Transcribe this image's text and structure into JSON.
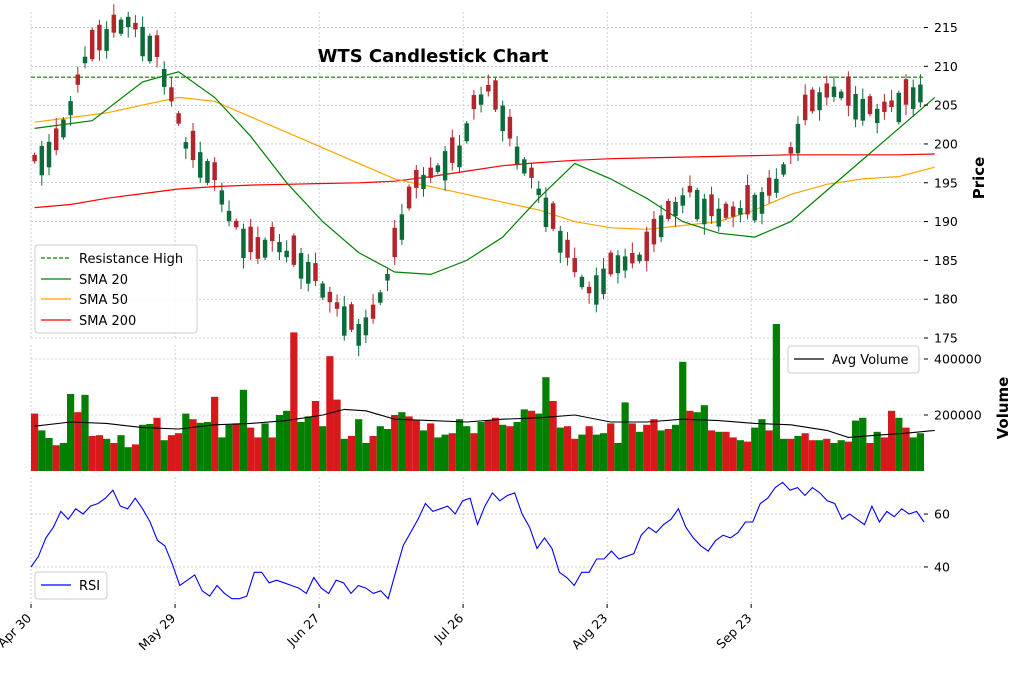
{
  "chart_data": {
    "type": "candlestick",
    "title": "WTS Candlestick Chart",
    "x_tick_labels": [
      "Apr 30",
      "May 29",
      "Jun 27",
      "Jul 26",
      "Aug 23",
      "Sep 23"
    ],
    "price_panel": {
      "ylabel": "Price",
      "ylim": [
        175,
        217
      ],
      "y_ticks": [
        175,
        180,
        185,
        190,
        195,
        200,
        205,
        210,
        215
      ],
      "resistance_high": 208.6,
      "legend": [
        "Resistance High",
        "SMA 20",
        "SMA 50",
        "SMA 200"
      ],
      "legend_position": "lower-left",
      "colors": {
        "up": "#0b6b3a",
        "down": "#b0262b",
        "resistance": "#008000",
        "sma20": "#008000",
        "sma50": "#ffa500",
        "sma200": "#ff0000"
      },
      "close_path": [
        [
          0,
          198
        ],
        [
          3,
          200
        ],
        [
          5,
          205
        ],
        [
          7,
          211
        ],
        [
          9,
          213
        ],
        [
          11,
          215
        ],
        [
          13,
          216
        ],
        [
          15,
          214
        ],
        [
          17,
          212
        ],
        [
          19,
          206
        ],
        [
          21,
          200
        ],
        [
          23,
          198
        ],
        [
          25,
          196
        ],
        [
          27,
          191
        ],
        [
          29,
          188
        ],
        [
          31,
          186
        ],
        [
          33,
          188
        ],
        [
          35,
          186
        ],
        [
          37,
          185
        ],
        [
          39,
          183
        ],
        [
          41,
          180
        ],
        [
          43,
          178
        ],
        [
          45,
          176
        ],
        [
          47,
          178
        ],
        [
          49,
          183
        ],
        [
          51,
          190
        ],
        [
          53,
          195
        ],
        [
          55,
          196
        ],
        [
          57,
          198
        ],
        [
          59,
          199
        ],
        [
          61,
          205
        ],
        [
          63,
          207
        ],
        [
          65,
          204
        ],
        [
          67,
          199
        ],
        [
          69,
          196
        ],
        [
          71,
          192
        ],
        [
          73,
          188
        ],
        [
          75,
          184
        ],
        [
          77,
          181
        ],
        [
          79,
          183
        ],
        [
          81,
          185
        ],
        [
          83,
          185
        ],
        [
          85,
          186
        ],
        [
          87,
          190
        ],
        [
          89,
          192
        ],
        [
          91,
          194
        ],
        [
          93,
          192
        ],
        [
          95,
          191
        ],
        [
          97,
          191
        ],
        [
          99,
          192
        ],
        [
          101,
          193
        ],
        [
          103,
          195
        ],
        [
          105,
          199
        ],
        [
          107,
          204
        ],
        [
          109,
          206
        ],
        [
          111,
          207
        ],
        [
          113,
          206
        ],
        [
          115,
          205
        ],
        [
          117,
          204
        ],
        [
          119,
          205
        ],
        [
          121,
          206
        ],
        [
          123,
          207
        ],
        [
          125,
          206
        ]
      ],
      "sma20": [
        [
          0,
          202
        ],
        [
          8,
          203
        ],
        [
          15,
          208
        ],
        [
          20,
          209.3
        ],
        [
          25,
          206
        ],
        [
          30,
          201
        ],
        [
          35,
          195
        ],
        [
          40,
          190
        ],
        [
          45,
          186
        ],
        [
          50,
          183.5
        ],
        [
          55,
          183.2
        ],
        [
          60,
          185
        ],
        [
          65,
          188
        ],
        [
          70,
          193
        ],
        [
          75,
          197.5
        ],
        [
          80,
          195.5
        ],
        [
          85,
          193
        ],
        [
          90,
          190
        ],
        [
          95,
          188.5
        ],
        [
          100,
          188
        ],
        [
          105,
          190
        ],
        [
          110,
          194
        ],
        [
          115,
          198
        ],
        [
          120,
          202
        ],
        [
          125,
          206
        ]
      ],
      "sma50": [
        [
          0,
          202.8
        ],
        [
          10,
          204
        ],
        [
          15,
          205
        ],
        [
          20,
          206
        ],
        [
          25,
          205.5
        ],
        [
          30,
          203.5
        ],
        [
          35,
          201.5
        ],
        [
          40,
          199.5
        ],
        [
          45,
          197.5
        ],
        [
          50,
          195.5
        ],
        [
          55,
          194.5
        ],
        [
          60,
          193.5
        ],
        [
          65,
          192.5
        ],
        [
          70,
          191.5
        ],
        [
          75,
          190
        ],
        [
          80,
          189.2
        ],
        [
          85,
          189
        ],
        [
          90,
          189.5
        ],
        [
          95,
          190
        ],
        [
          100,
          191.5
        ],
        [
          105,
          193.5
        ],
        [
          110,
          194.8
        ],
        [
          115,
          195.5
        ],
        [
          120,
          195.8
        ],
        [
          125,
          197
        ]
      ],
      "sma200": [
        [
          0,
          191.8
        ],
        [
          5,
          192.2
        ],
        [
          10,
          193
        ],
        [
          15,
          193.6
        ],
        [
          20,
          194.2
        ],
        [
          25,
          194.5
        ],
        [
          30,
          194.7
        ],
        [
          35,
          194.8
        ],
        [
          40,
          194.9
        ],
        [
          45,
          195
        ],
        [
          50,
          195.2
        ],
        [
          55,
          195.8
        ],
        [
          60,
          196.5
        ],
        [
          65,
          197.2
        ],
        [
          70,
          197.6
        ],
        [
          75,
          197.9
        ],
        [
          80,
          198.1
        ],
        [
          85,
          198.2
        ],
        [
          90,
          198.3
        ],
        [
          95,
          198.4
        ],
        [
          100,
          198.5
        ],
        [
          105,
          198.6
        ],
        [
          110,
          198.6
        ],
        [
          115,
          198.6
        ],
        [
          120,
          198.6
        ],
        [
          125,
          198.7
        ]
      ]
    },
    "volume_panel": {
      "ylabel": "Volume",
      "ylim": [
        0,
        450000
      ],
      "y_ticks": [
        200000,
        400000
      ],
      "legend": [
        "Avg Volume"
      ],
      "legend_position": "upper-right",
      "volumes": [
        205000,
        145000,
        118000,
        92000,
        100000,
        275000,
        210000,
        272000,
        125000,
        128000,
        115000,
        100000,
        128000,
        85000,
        95000,
        165000,
        168000,
        190000,
        110000,
        128000,
        135000,
        205000,
        185000,
        172000,
        175000,
        265000,
        120000,
        165000,
        170000,
        290000,
        155000,
        120000,
        170000,
        120000,
        200000,
        215000,
        495000,
        175000,
        195000,
        250000,
        160000,
        410000,
        255000,
        115000,
        125000,
        185000,
        100000,
        125000,
        160000,
        150000,
        200000,
        210000,
        195000,
        180000,
        145000,
        170000,
        120000,
        130000,
        135000,
        185000,
        160000,
        135000,
        175000,
        180000,
        190000,
        165000,
        160000,
        175000,
        220000,
        215000,
        205000,
        335000,
        250000,
        155000,
        160000,
        115000,
        130000,
        160000,
        130000,
        135000,
        170000,
        100000,
        245000,
        170000,
        140000,
        165000,
        185000,
        145000,
        150000,
        165000,
        390000,
        215000,
        210000,
        235000,
        145000,
        140000,
        140000,
        120000,
        110000,
        105000,
        155000,
        185000,
        145000,
        525000,
        115000,
        115000,
        125000,
        135000,
        110000,
        110000,
        115000,
        100000,
        110000,
        105000,
        180000,
        190000,
        100000,
        140000,
        120000,
        215000,
        190000,
        155000,
        120000,
        135000
      ],
      "avg_volume": [
        [
          0,
          160000
        ],
        [
          5,
          175000
        ],
        [
          10,
          170000
        ],
        [
          15,
          155000
        ],
        [
          20,
          150000
        ],
        [
          25,
          165000
        ],
        [
          30,
          170000
        ],
        [
          35,
          180000
        ],
        [
          40,
          200000
        ],
        [
          43,
          220000
        ],
        [
          46,
          215000
        ],
        [
          50,
          185000
        ],
        [
          55,
          180000
        ],
        [
          60,
          175000
        ],
        [
          65,
          185000
        ],
        [
          70,
          190000
        ],
        [
          75,
          200000
        ],
        [
          80,
          175000
        ],
        [
          85,
          175000
        ],
        [
          90,
          185000
        ],
        [
          95,
          180000
        ],
        [
          100,
          170000
        ],
        [
          105,
          165000
        ],
        [
          110,
          145000
        ],
        [
          113,
          120000
        ],
        [
          117,
          128000
        ],
        [
          121,
          135000
        ],
        [
          125,
          145000
        ]
      ]
    },
    "rsi_panel": {
      "ylabel": "",
      "ylim": [
        26,
        74
      ],
      "y_ticks": [
        40,
        60
      ],
      "legend": [
        "RSI"
      ],
      "legend_position": "lower-left",
      "values": [
        40,
        44,
        51,
        55,
        61,
        58,
        62,
        60,
        63,
        64,
        66,
        69,
        63,
        62,
        66,
        62,
        57,
        50,
        48,
        41,
        33,
        35,
        37,
        31,
        29,
        33,
        30,
        28,
        28,
        29,
        38,
        38,
        34,
        35,
        34,
        33,
        32,
        30,
        36,
        32,
        30,
        35,
        34,
        30,
        33,
        32,
        30,
        31,
        28,
        38,
        48,
        53,
        58,
        64,
        61,
        62,
        63,
        60,
        65,
        66,
        56,
        63,
        68,
        65,
        67,
        68,
        60,
        55,
        47,
        51,
        47,
        38,
        36,
        33,
        38,
        38,
        43,
        43,
        46,
        43,
        44,
        45,
        52,
        55,
        53,
        56,
        58,
        62,
        55,
        51,
        48,
        46,
        50,
        52,
        51,
        53,
        57,
        57,
        64,
        66,
        70,
        72,
        69,
        70,
        67,
        70,
        68,
        65,
        64,
        58,
        60,
        58,
        56,
        63,
        57,
        61,
        59,
        62,
        60,
        61,
        57
      ]
    }
  }
}
